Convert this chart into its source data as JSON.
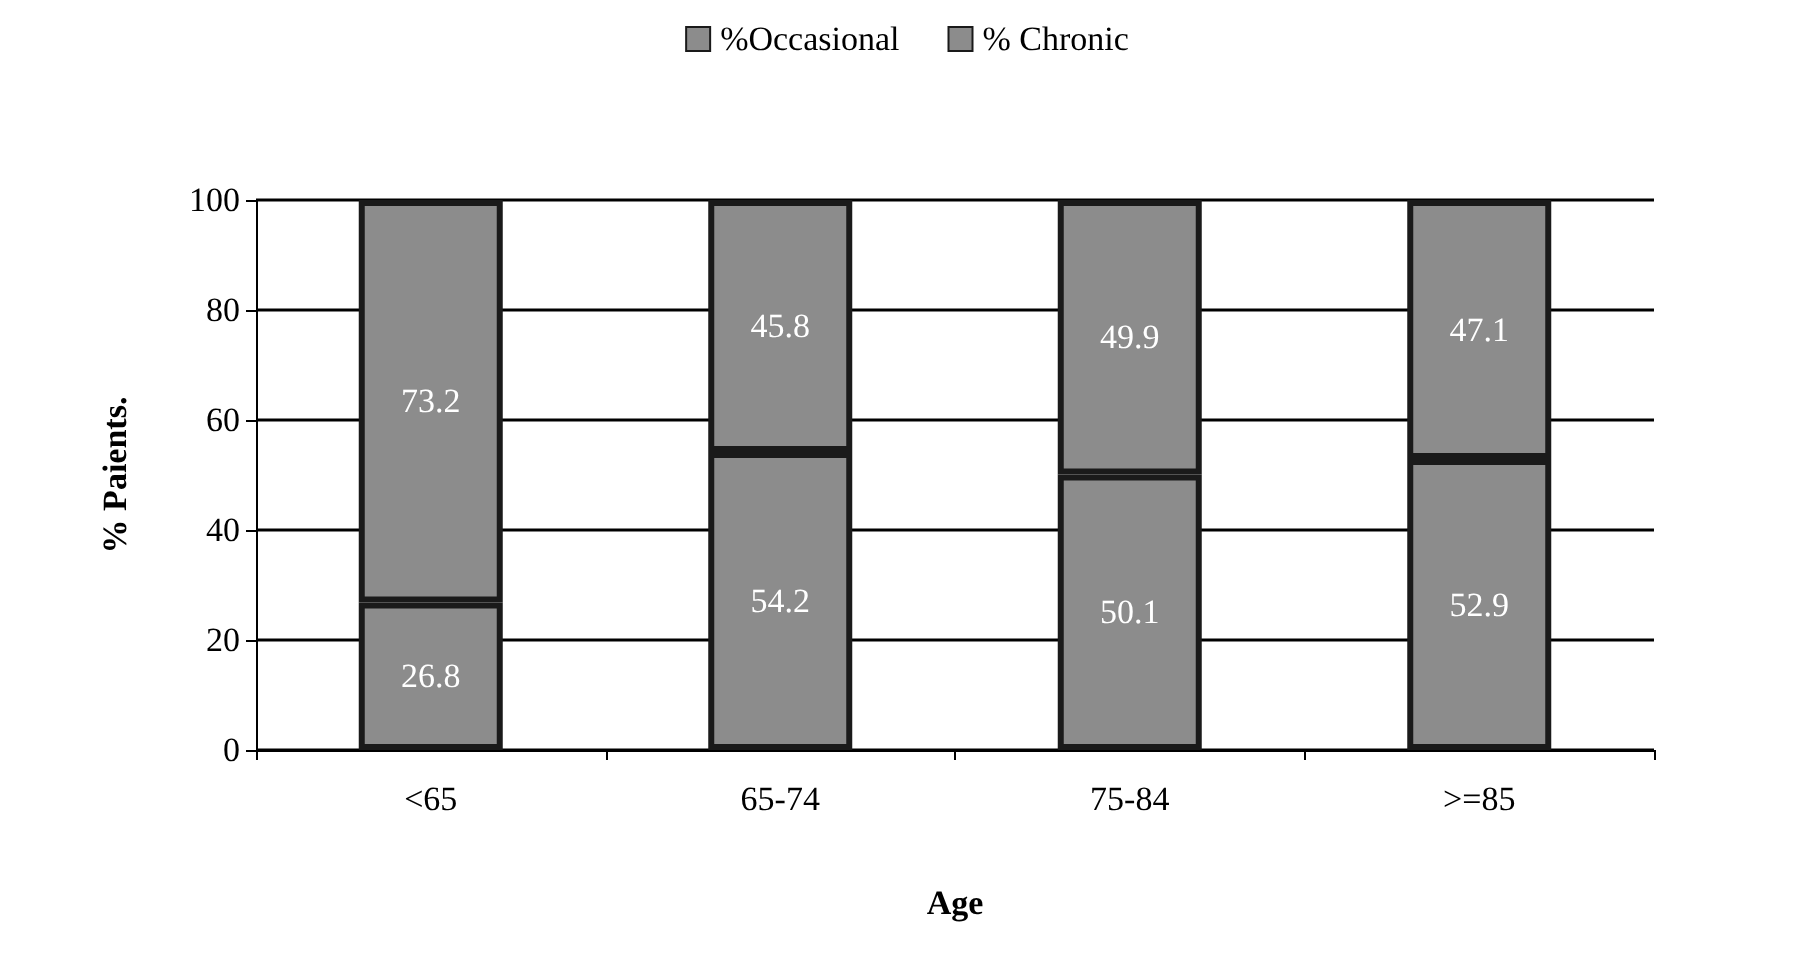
{
  "chart_data": {
    "type": "bar",
    "stacked": true,
    "xlabel": "Age",
    "ylabel": "% Paients.",
    "categories": [
      "<65",
      "65-74",
      "75-84",
      ">=85"
    ],
    "series": [
      {
        "name": "%Occasional",
        "color": "#8c8c8c",
        "values": [
          26.8,
          54.2,
          50.1,
          52.9
        ]
      },
      {
        "name": "% Chronic",
        "color": "#8c8c8c",
        "values": [
          73.2,
          45.8,
          49.9,
          47.1
        ]
      }
    ],
    "data_labels": true,
    "ylim": [
      0,
      100
    ],
    "yticks": [
      0,
      20,
      40,
      60,
      80,
      100
    ],
    "grid": "y",
    "legend": "top"
  }
}
